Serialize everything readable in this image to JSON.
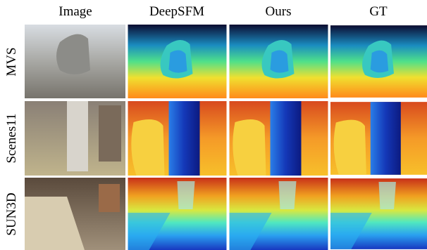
{
  "columns": [
    "Image",
    "DeepSFM",
    "Ours",
    "GT"
  ],
  "rows": [
    "MVS",
    "Scenes11",
    "SUN3D"
  ]
}
